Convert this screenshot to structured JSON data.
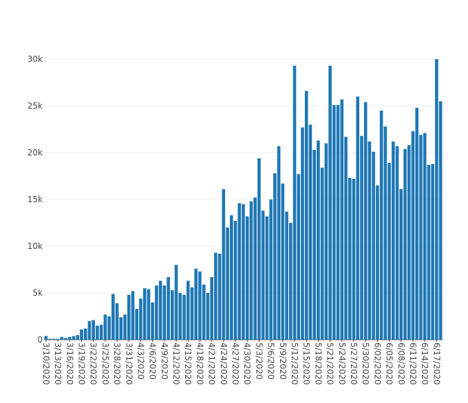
{
  "chart_data": {
    "type": "bar",
    "title": "",
    "xlabel": "",
    "ylabel": "",
    "ylim": [
      0,
      30000
    ],
    "y_ticks": [
      {
        "value": 0,
        "label": "0"
      },
      {
        "value": 5000,
        "label": "5k"
      },
      {
        "value": 10000,
        "label": "10k"
      },
      {
        "value": 15000,
        "label": "15k"
      },
      {
        "value": 20000,
        "label": "20k"
      },
      {
        "value": 25000,
        "label": "25k"
      },
      {
        "value": 30000,
        "label": "30k"
      }
    ],
    "x_tick_labels": [
      "3/10/2020",
      "3/13/2020",
      "3/16/2020",
      "3/19/2020",
      "3/22/2020",
      "3/25/2020",
      "3/28/2020",
      "3/31/2020",
      "4/3/2020",
      "4/6/2020",
      "4/9/2020",
      "4/12/2020",
      "4/15/2020",
      "4/18/2020",
      "4/21/2020",
      "4/24/2020",
      "4/27/2020",
      "4/30/2020",
      "5/3/2020",
      "5/6/2020",
      "5/9/2020",
      "5/12/2020",
      "5/15/2020",
      "5/18/2020",
      "5/21/2020",
      "5/24/2020",
      "5/27/2020",
      "5/30/2020",
      "6/02/2020",
      "6/05/2020",
      "6/08/2020",
      "6/11/2020",
      "6/14/2020",
      "6/17/2020"
    ],
    "grid": true,
    "legend": "none",
    "bar_color": "#1f77b4",
    "values": [
      400,
      100,
      100,
      100,
      300,
      200,
      300,
      400,
      500,
      1100,
      1200,
      2000,
      2100,
      1500,
      1600,
      2700,
      2500,
      4900,
      3900,
      2400,
      2700,
      4800,
      5200,
      3300,
      4400,
      5500,
      5400,
      4000,
      5800,
      6300,
      5800,
      6700,
      5300,
      8000,
      5000,
      4800,
      6300,
      5600,
      7600,
      7300,
      5900,
      5000,
      6700,
      9300,
      9200,
      16100,
      12000,
      13300,
      12700,
      14600,
      14500,
      13200,
      14800,
      15200,
      19400,
      13800,
      13200,
      15000,
      17800,
      20700,
      16700,
      13700,
      12500,
      29300,
      17700,
      22700,
      26600,
      23000,
      20300,
      21300,
      18400,
      21000,
      29300,
      25100,
      25100,
      25700,
      21700,
      17300,
      17200,
      26000,
      21800,
      25400,
      21200,
      20100,
      16500,
      24500,
      22800,
      18900,
      21200,
      20700,
      16100,
      20400,
      20800,
      22300,
      24800,
      21900,
      22100,
      18700,
      18800,
      30000,
      25500
    ]
  }
}
